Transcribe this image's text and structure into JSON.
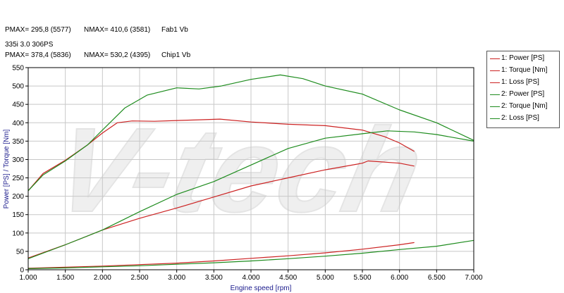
{
  "header": {
    "rows": [
      {
        "pmax": "PMAX= 295,8 (5577)",
        "nmax": "NMAX= 410,6 (3581)",
        "name": "Fab1 Vb"
      },
      {
        "pmax": "PMAX= 378,4 (5836)",
        "nmax": "NMAX= 530,2 (4395)",
        "name": "Chip1 Vb"
      }
    ],
    "subtitle": "335i 3.0 306PS"
  },
  "watermark": "V-tech",
  "colors": {
    "series1": "#cc2222",
    "series2": "#1e8c1e",
    "grid": "#c8c8c8",
    "axis": "#000000",
    "axis_label": "#1a1a8c"
  },
  "chart_data": {
    "type": "line",
    "xlabel": "Engine speed [rpm]",
    "ylabel": "Power [PS] / Torque [Nm]",
    "xlim": [
      1000,
      7000
    ],
    "ylim": [
      0,
      550
    ],
    "grid": true,
    "legend_position": "right",
    "x_ticks": [
      1000,
      1500,
      2000,
      2500,
      3000,
      3500,
      4000,
      4500,
      5000,
      5500,
      6000,
      6500,
      7000
    ],
    "x_tick_labels": [
      "1.000",
      "1.500",
      "2.000",
      "2.500",
      "3.000",
      "3.500",
      "4.000",
      "4.500",
      "5.000",
      "5.500",
      "6.000",
      "6.500",
      "7.000"
    ],
    "y_ticks": [
      0,
      50,
      100,
      150,
      200,
      250,
      300,
      350,
      400,
      450,
      500,
      550
    ],
    "y_tick_labels": [
      "0",
      "50",
      "100",
      "150",
      "200",
      "250",
      "300",
      "350",
      "400",
      "450",
      "500",
      "550"
    ],
    "series": [
      {
        "name": "1: Power [PS]",
        "color": "#cc2222",
        "x": [
          1000,
          1500,
          2000,
          2500,
          3000,
          3500,
          4000,
          4500,
          5000,
          5500,
          5577,
          6000,
          6200
        ],
        "y": [
          32,
          68,
          108,
          140,
          168,
          198,
          228,
          250,
          272,
          290,
          296,
          290,
          282
        ]
      },
      {
        "name": "1: Torque [Nm]",
        "color": "#cc2222",
        "x": [
          1000,
          1200,
          1500,
          1800,
          2000,
          2200,
          2400,
          2700,
          3000,
          3300,
          3581,
          4000,
          4500,
          5000,
          5500,
          5800,
          6000,
          6200
        ],
        "y": [
          215,
          262,
          298,
          340,
          372,
          400,
          405,
          404,
          406,
          408,
          410,
          402,
          396,
          392,
          380,
          362,
          345,
          322
        ]
      },
      {
        "name": "1: Loss [PS]",
        "color": "#cc2222",
        "x": [
          1000,
          1500,
          2000,
          2500,
          3000,
          3500,
          4000,
          4500,
          5000,
          5500,
          6000,
          6200
        ],
        "y": [
          4,
          7,
          10,
          14,
          18,
          24,
          31,
          38,
          46,
          56,
          68,
          74
        ]
      },
      {
        "name": "2: Power [PS]",
        "color": "#1e8c1e",
        "x": [
          1000,
          1500,
          2000,
          2500,
          3000,
          3500,
          4000,
          4500,
          5000,
          5500,
          5836,
          6200,
          6500,
          7000
        ],
        "y": [
          30,
          68,
          108,
          158,
          205,
          240,
          285,
          330,
          358,
          370,
          378,
          375,
          368,
          350
        ]
      },
      {
        "name": "2: Torque [Nm]",
        "color": "#1e8c1e",
        "x": [
          1000,
          1200,
          1500,
          1800,
          2000,
          2300,
          2600,
          3000,
          3300,
          3600,
          4000,
          4395,
          4700,
          5000,
          5500,
          6000,
          6500,
          7000
        ],
        "y": [
          215,
          258,
          296,
          340,
          380,
          440,
          475,
          495,
          492,
          500,
          518,
          530,
          520,
          500,
          478,
          435,
          400,
          352
        ]
      },
      {
        "name": "2: Loss [PS]",
        "color": "#1e8c1e",
        "x": [
          1000,
          1500,
          2000,
          2500,
          3000,
          3500,
          4000,
          4500,
          5000,
          5500,
          6000,
          6500,
          7000
        ],
        "y": [
          3,
          5,
          8,
          11,
          15,
          19,
          24,
          30,
          37,
          45,
          55,
          64,
          80
        ]
      }
    ]
  }
}
